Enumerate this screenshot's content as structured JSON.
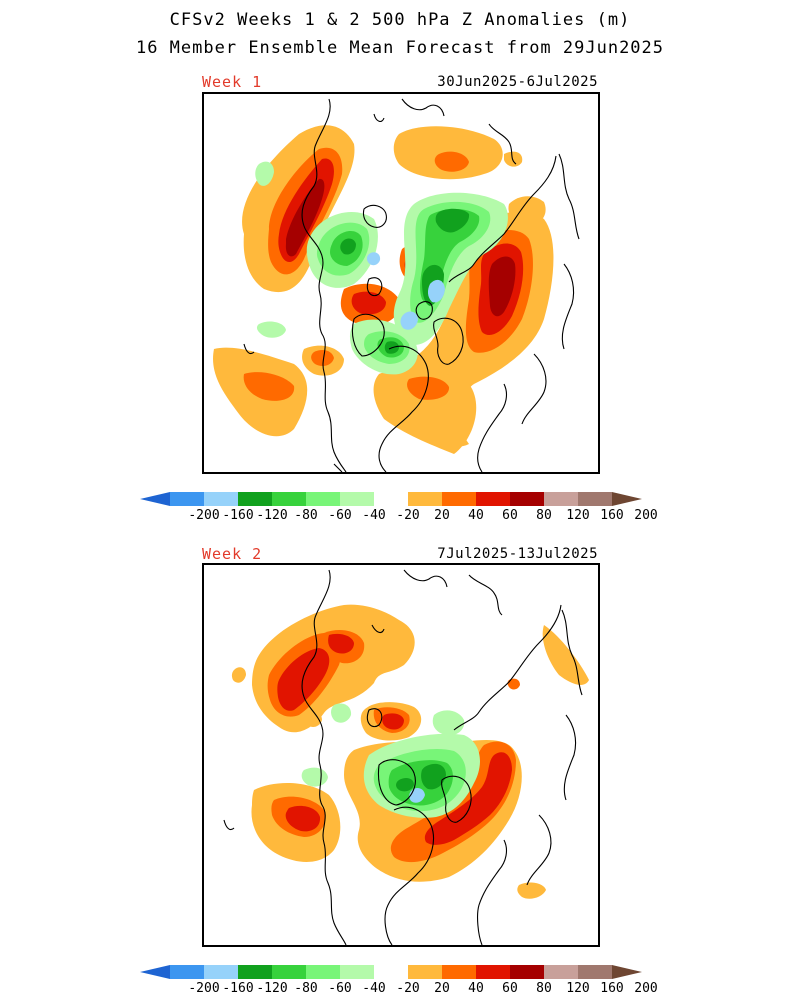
{
  "title": {
    "line1": "CFSv2 Weeks 1 & 2 500 hPa Z Anomalies (m)",
    "line2": "16 Member Ensemble Mean Forecast from 29Jun2025"
  },
  "panels": [
    {
      "label": "Week 1",
      "dates": "30Jun2025-6Jul2025"
    },
    {
      "label": "Week 2",
      "dates": "7Jul2025-13Jul2025"
    }
  ],
  "colorbar": {
    "labels": [
      "-200",
      "-160",
      "-120",
      "-80",
      "-60",
      "-40",
      "-20",
      "20",
      "40",
      "60",
      "80",
      "120",
      "160",
      "200"
    ],
    "colors": [
      "#1e64d2",
      "#3c96f0",
      "#96d2fa",
      "#11a11e",
      "#37d23c",
      "#78f578",
      "#b4faaa",
      "#ffffff",
      "#ffb93c",
      "#ff6a00",
      "#e11400",
      "#a50000",
      "#c8a09a",
      "#a0786e",
      "#6e4632"
    ]
  },
  "legend_colors": {
    "neg_strong": "#96d2fa",
    "neg_mid": "#11a11e",
    "neg_light": "#37d23c",
    "neg_faint": "#78f578",
    "neg_pale": "#b4faaa",
    "pos_20": "#ffb93c",
    "pos_40": "#ff6a00",
    "pos_60": "#e11400",
    "pos_80": "#a50000"
  }
}
